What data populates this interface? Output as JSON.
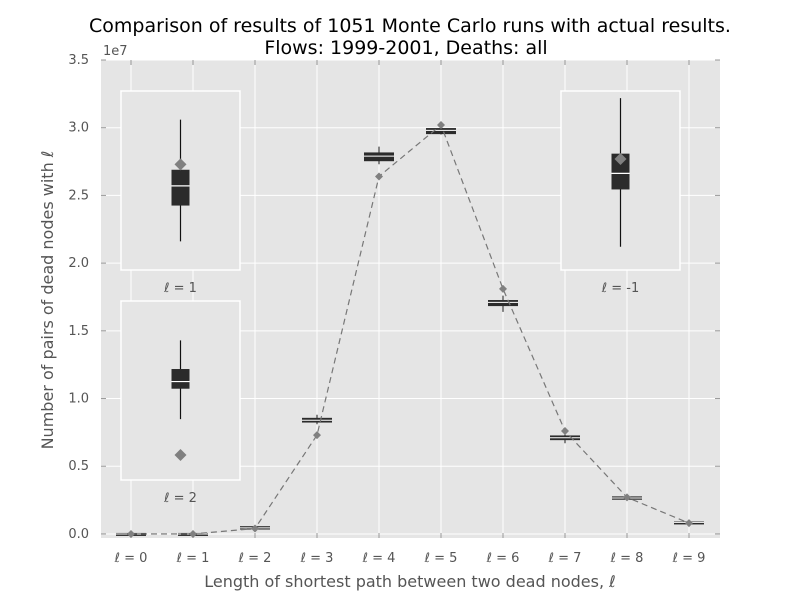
{
  "chart_data": {
    "type": "line",
    "title": "Comparison of results of 1051 Monte Carlo runs with actual results.",
    "subtitle": "Flows: 1999-2001,  Deaths: all",
    "xlabel": "Length of shortest path between two dead nodes, ℓ",
    "ylabel": "Number of pairs of dead nodes with ℓ",
    "y_multiplier": "1e7",
    "ylim": [
      -0.03,
      3.5
    ],
    "y_ticks": [
      0.0,
      0.5,
      1.0,
      1.5,
      2.0,
      2.5,
      3.0,
      3.5
    ],
    "y_tick_labels": [
      "0.0",
      "0.5",
      "1.0",
      "1.5",
      "2.0",
      "2.5",
      "3.0",
      "3.5"
    ],
    "grid": true,
    "categories": [
      "ℓ = 0",
      "ℓ = 1",
      "ℓ = 2",
      "ℓ = 3",
      "ℓ = 4",
      "ℓ = 5",
      "ℓ = 6",
      "ℓ = 7",
      "ℓ = 8",
      "ℓ = 9"
    ],
    "actual_values": [
      0.0,
      0.0,
      0.04,
      0.73,
      2.64,
      3.02,
      1.81,
      0.76,
      0.27,
      0.08
    ],
    "monte_carlo_boxes": [
      {
        "q1": 0.0,
        "median": 0.0,
        "q3": 0.0,
        "low": 0.0,
        "high": 0.0
      },
      {
        "q1": 0.0,
        "median": 0.0,
        "q3": 0.0,
        "low": 0.0,
        "high": 0.0
      },
      {
        "q1": 0.04,
        "median": 0.045,
        "q3": 0.05,
        "low": 0.04,
        "high": 0.05
      },
      {
        "q1": 0.83,
        "median": 0.84,
        "q3": 0.85,
        "low": 0.81,
        "high": 0.88
      },
      {
        "q1": 2.76,
        "median": 2.79,
        "q3": 2.81,
        "low": 2.73,
        "high": 2.86
      },
      {
        "q1": 2.96,
        "median": 2.98,
        "q3": 2.99,
        "low": 2.95,
        "high": 3.0
      },
      {
        "q1": 1.69,
        "median": 1.71,
        "q3": 1.72,
        "low": 1.64,
        "high": 1.76
      },
      {
        "q1": 0.7,
        "median": 0.71,
        "q3": 0.72,
        "low": 0.67,
        "high": 0.74
      },
      {
        "q1": 0.26,
        "median": 0.265,
        "q3": 0.27,
        "low": 0.26,
        "high": 0.27
      },
      {
        "q1": 0.085,
        "median": 0.085,
        "q3": 0.085,
        "low": 0.085,
        "high": 0.085
      }
    ],
    "insets": [
      {
        "label": "ℓ = 1",
        "q1": 0.36,
        "median": 0.47,
        "q3": 0.56,
        "low": 0.16,
        "high": 0.84,
        "actual": 0.59
      },
      {
        "label": "ℓ = 2",
        "q1": 0.51,
        "median": 0.55,
        "q3": 0.62,
        "low": 0.34,
        "high": 0.78,
        "actual": 0.14
      },
      {
        "label": "ℓ = -1",
        "q1": 0.45,
        "median": 0.54,
        "q3": 0.65,
        "low": 0.13,
        "high": 0.96,
        "actual": 0.62
      }
    ]
  }
}
